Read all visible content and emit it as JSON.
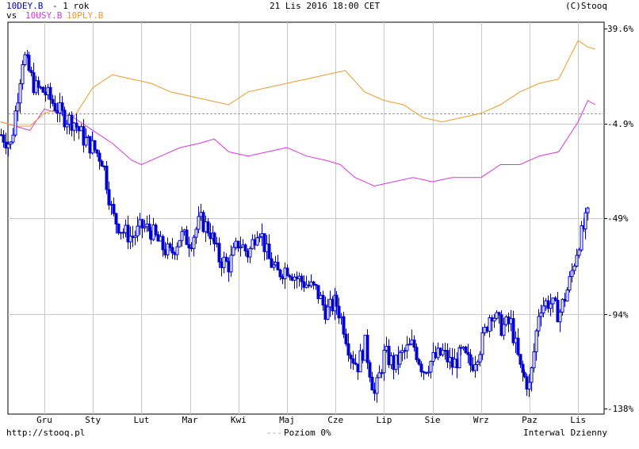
{
  "header": {
    "ticker_main": "10DEY.B",
    "period_text": "- 1 rok",
    "vs_label": "vs",
    "ticker_cmp1": "10USY.B",
    "ticker_cmp2": "10PLY.B",
    "date": "21 Lis 2016 18:00 CET",
    "copyright": "(C)Stooq"
  },
  "footer": {
    "url": "http://stooq.pl",
    "baseline_label": "Poziom 0%",
    "interval_label": "Interwal Dzienny"
  },
  "colors": {
    "main": "#0000cc",
    "cmp1": "#dd33dd",
    "cmp2": "#ee9922",
    "grid": "#c8c8c8",
    "baseline": "#999999"
  },
  "chart_data": {
    "type": "line",
    "title": "",
    "xlabel": "",
    "ylabel": "",
    "x_tick_labels": [
      "Gru",
      "Sty",
      "Lut",
      "Mar",
      "Kwi",
      "Maj",
      "Cze",
      "Lip",
      "Sie",
      "Wrz",
      "Paz",
      "Lis"
    ],
    "y_tick_labels": [
      "39.6%",
      "-4.9%",
      "-49%",
      "-94%",
      "-138%"
    ],
    "y_tick_values": [
      39.6,
      -4.9,
      -49,
      -94,
      -138
    ],
    "ylim": [
      -138,
      39.6
    ],
    "baseline": 0,
    "grid": true,
    "x_unit": "month index (0 = Gru 2015, 11 = Lis 2016)",
    "series": [
      {
        "name": "10DEY.B",
        "style": "candlestick",
        "x": [
          -0.9,
          -0.7,
          -0.45,
          -0.2,
          0.0,
          0.2,
          0.4,
          0.6,
          0.8,
          1.0,
          1.2,
          1.4,
          1.6,
          1.8,
          2.0,
          2.2,
          2.4,
          2.6,
          2.8,
          3.0,
          3.2,
          3.4,
          3.6,
          3.8,
          4.0,
          4.2,
          4.4,
          4.6,
          4.8,
          5.0,
          5.2,
          5.4,
          5.6,
          5.8,
          6.0,
          6.15,
          6.3,
          6.45,
          6.6,
          6.8,
          7.0,
          7.2,
          7.4,
          7.6,
          7.8,
          8.0,
          8.2,
          8.4,
          8.6,
          8.8,
          9.0,
          9.2,
          9.4,
          9.6,
          9.8,
          10.0,
          10.2,
          10.4,
          10.6,
          10.8,
          11.0,
          11.2
        ],
        "values": [
          -10,
          -15,
          28,
          12,
          10,
          4,
          -2,
          -4,
          -12,
          -16,
          -22,
          -48,
          -55,
          -58,
          -53,
          -55,
          -62,
          -66,
          -57,
          -60,
          -50,
          -55,
          -68,
          -71,
          -60,
          -66,
          -52,
          -68,
          -75,
          -72,
          -77,
          -80,
          -83,
          -93,
          -88,
          -98,
          -112,
          -118,
          -108,
          -132,
          -112,
          -118,
          -112,
          -108,
          -120,
          -115,
          -112,
          -118,
          -112,
          -118,
          -108,
          -92,
          -100,
          -98,
          -120,
          -128,
          -90,
          -88,
          -94,
          -80,
          -60,
          -48
        ]
      },
      {
        "name": "10USY.B",
        "style": "line",
        "x": [
          -0.9,
          -0.6,
          -0.3,
          0.0,
          0.3,
          0.6,
          1.0,
          1.4,
          1.8,
          2.0,
          2.4,
          2.8,
          3.2,
          3.5,
          3.8,
          4.2,
          4.6,
          5.0,
          5.4,
          5.8,
          6.1,
          6.4,
          6.6,
          6.8,
          7.2,
          7.6,
          8.0,
          8.4,
          8.8,
          9.0,
          9.4,
          9.8,
          10.2,
          10.6,
          11.0,
          11.2,
          11.35
        ],
        "values": [
          -4,
          -6,
          -8,
          2,
          0,
          -2,
          -8,
          -14,
          -22,
          -24,
          -20,
          -16,
          -14,
          -12,
          -18,
          -20,
          -18,
          -16,
          -20,
          -22,
          -24,
          -30,
          -32,
          -34,
          -32,
          -30,
          -32,
          -30,
          -30,
          -30,
          -24,
          -24,
          -20,
          -18,
          -4,
          6,
          4
        ]
      },
      {
        "name": "10PLY.B",
        "style": "line",
        "x": [
          -0.9,
          -0.6,
          -0.3,
          0.0,
          0.3,
          0.6,
          1.0,
          1.4,
          1.8,
          2.2,
          2.6,
          3.0,
          3.4,
          3.8,
          4.2,
          4.6,
          5.0,
          5.4,
          5.8,
          6.2,
          6.6,
          7.0,
          7.4,
          7.8,
          8.2,
          8.6,
          9.0,
          9.4,
          9.8,
          10.2,
          10.6,
          11.0,
          11.2,
          11.35
        ],
        "values": [
          -4,
          -6,
          -6,
          0,
          2,
          -2,
          12,
          18,
          16,
          14,
          10,
          8,
          6,
          4,
          10,
          12,
          14,
          16,
          18,
          20,
          10,
          6,
          4,
          -2,
          -4,
          -2,
          0,
          4,
          10,
          14,
          16,
          34,
          31,
          30
        ]
      }
    ]
  }
}
